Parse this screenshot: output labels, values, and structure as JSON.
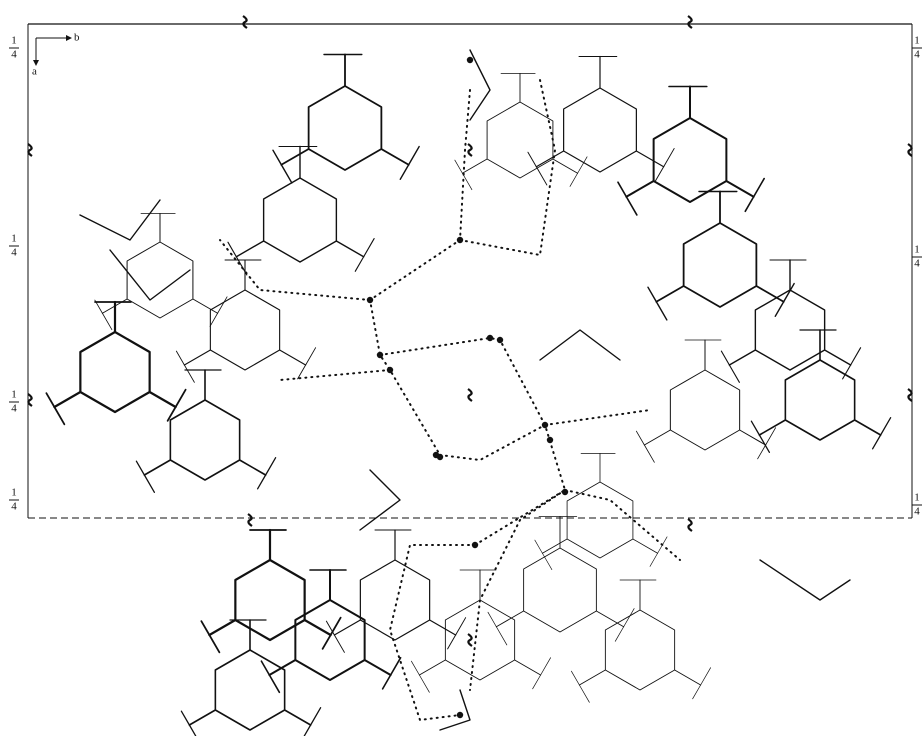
{
  "axes": {
    "horizontal": "b",
    "vertical": "a"
  },
  "fractions": [
    {
      "num": "1",
      "den": "4"
    },
    {
      "num": "1",
      "den": "4"
    },
    {
      "num": "1",
      "den": "4"
    },
    {
      "num": "1",
      "den": "4"
    },
    {
      "num": "1",
      "den": "4"
    },
    {
      "num": "1",
      "den": "4"
    },
    {
      "num": "1",
      "den": "4"
    }
  ]
}
